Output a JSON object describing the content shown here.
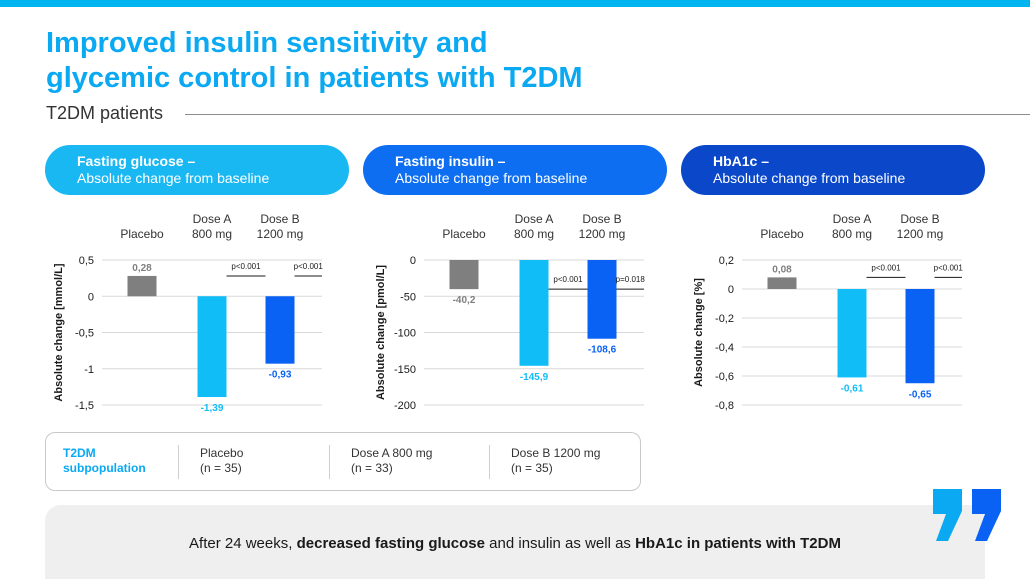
{
  "title_line1": "Improved insulin sensitivity and",
  "title_line2": "glycemic control in patients with T2DM",
  "subtitle": "T2DM patients",
  "colors": {
    "accent": "#0aa9f2",
    "placebo": "#7f7f7f",
    "dose_a": "#10bdf7",
    "dose_b": "#0a62f5",
    "panel1": "#1ab8f2",
    "panel2": "#0d6ef2",
    "panel3": "#0a47c9"
  },
  "panels": [
    {
      "title": "Fasting glucose –",
      "subtitle": "Absolute change from baseline"
    },
    {
      "title": "Fasting insulin –",
      "subtitle": "Absolute change from baseline"
    },
    {
      "title": "HbA1c –",
      "subtitle": "Absolute change from baseline"
    }
  ],
  "chart_data": [
    {
      "type": "bar",
      "categories": [
        "Placebo",
        "Dose A 800 mg",
        "Dose B 1200 mg"
      ],
      "category_lines": [
        [
          "Placebo"
        ],
        [
          "Dose A",
          "800 mg"
        ],
        [
          "Dose B",
          "1200 mg"
        ]
      ],
      "values": [
        0.28,
        -1.39,
        -0.93
      ],
      "value_labels": [
        "0,28",
        "-1,39",
        "-0,93"
      ],
      "ylabel": "Absolute change [mmol/L]",
      "ylim": [
        -1.5,
        0.5
      ],
      "yticks": [
        0.5,
        0,
        -0.5,
        -1,
        -1.5
      ],
      "ytick_labels": [
        "0,5",
        "0",
        "-0,5",
        "-1",
        "-1,5"
      ],
      "pvalues": [
        "p<0.001",
        "p<0.001"
      ],
      "grid": true
    },
    {
      "type": "bar",
      "categories": [
        "Placebo",
        "Dose A 800 mg",
        "Dose B 1200 mg"
      ],
      "category_lines": [
        [
          "Placebo"
        ],
        [
          "Dose A",
          "800 mg"
        ],
        [
          "Dose B",
          "1200 mg"
        ]
      ],
      "values": [
        -40.2,
        -145.9,
        -108.6
      ],
      "value_labels": [
        "-40,2",
        "-145,9",
        "-108,6"
      ],
      "ylabel": "Absolute change [pmol/L]",
      "ylim": [
        -200,
        0
      ],
      "yticks": [
        0,
        -50,
        -100,
        -150,
        -200
      ],
      "ytick_labels": [
        "0",
        "-50",
        "-100",
        "-150",
        "-200"
      ],
      "pvalues": [
        "p<0.001",
        "p=0.018"
      ],
      "grid": true
    },
    {
      "type": "bar",
      "categories": [
        "Placebo",
        "Dose A 800 mg",
        "Dose B 1200 mg"
      ],
      "category_lines": [
        [
          "Placebo"
        ],
        [
          "Dose A",
          "800 mg"
        ],
        [
          "Dose B",
          "1200 mg"
        ]
      ],
      "values": [
        0.08,
        -0.61,
        -0.65
      ],
      "value_labels": [
        "0,08",
        "-0,61",
        "-0,65"
      ],
      "ylabel": "Absolute change [%]",
      "ylim": [
        -0.8,
        0.2
      ],
      "yticks": [
        0.2,
        0,
        -0.2,
        -0.4,
        -0.6,
        -0.8
      ],
      "ytick_labels": [
        "0,2",
        "0",
        "-0,2",
        "-0,4",
        "-0,6",
        "-0,8"
      ],
      "pvalues": [
        "p<0.001",
        "p<0.001"
      ],
      "grid": true
    }
  ],
  "legend": {
    "title_line1": "T2DM",
    "title_line2": "subpopulation",
    "items": [
      {
        "line1": "Placebo",
        "line2": "(n = 35)"
      },
      {
        "line1": "Dose A 800 mg",
        "line2": "(n = 33)"
      },
      {
        "line1": "Dose B 1200 mg",
        "line2": "(n = 35)"
      }
    ]
  },
  "conclusion": {
    "part1": "After 24 weeks, ",
    "bold1": "decreased fasting glucose",
    "part2": " and insulin  as well as ",
    "bold2": "HbA1c in patients with T2DM"
  },
  "quote_icon": "quotation-mark-icon"
}
